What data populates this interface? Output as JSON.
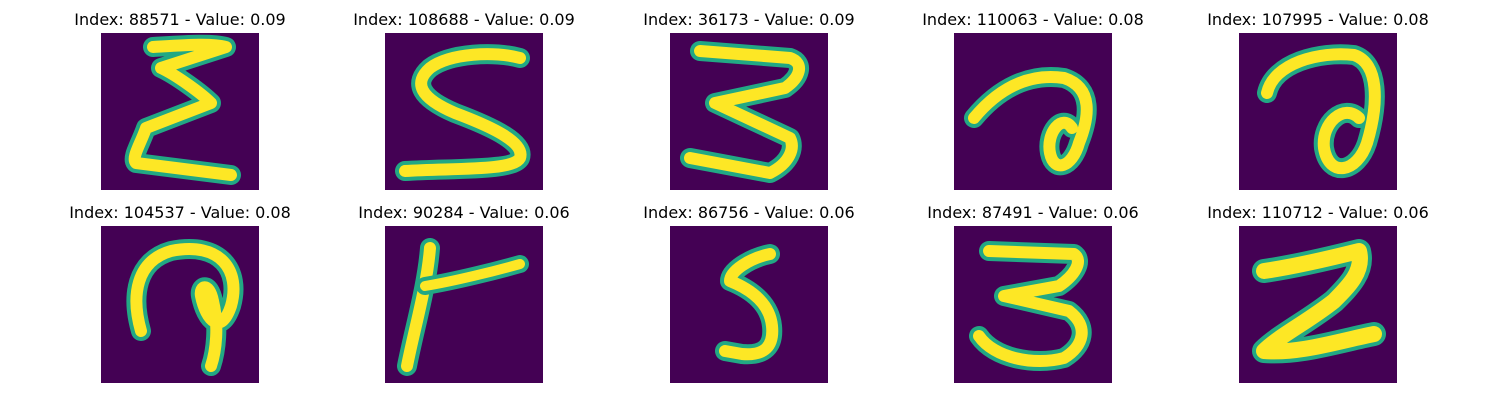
{
  "colors": {
    "background": "#440154",
    "stroke_outer": "#22a884",
    "stroke_inner": "#fde725"
  },
  "panels": [
    {
      "title": "Index: 88571 - Value: 0.09",
      "glyph": "sigma"
    },
    {
      "title": "Index: 108688 - Value: 0.09",
      "glyph": "five-open"
    },
    {
      "title": "Index: 36173 - Value: 0.09",
      "glyph": "three-zigzag"
    },
    {
      "title": "Index: 110063 - Value: 0.08",
      "glyph": "loop-a"
    },
    {
      "title": "Index: 107995 - Value: 0.08",
      "glyph": "loop-a-wide"
    },
    {
      "title": "Index: 104537 - Value: 0.08",
      "glyph": "loop-hook"
    },
    {
      "title": "Index: 90284 - Value: 0.06",
      "glyph": "t-shape"
    },
    {
      "title": "Index: 86756 - Value: 0.06",
      "glyph": "five-small"
    },
    {
      "title": "Index: 87491 - Value: 0.06",
      "glyph": "three-round"
    },
    {
      "title": "Index: 110712 - Value: 0.06",
      "glyph": "two-heavy"
    }
  ]
}
